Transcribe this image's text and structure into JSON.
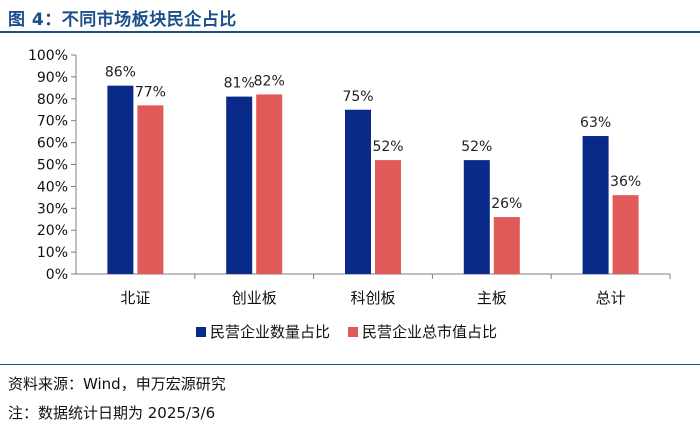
{
  "header": {
    "title": "图 4：不同市场板块民企占比"
  },
  "chart_data": {
    "type": "bar",
    "title": "",
    "xlabel": "",
    "ylabel": "",
    "ylim": [
      0,
      100
    ],
    "y_ticks": [
      "0%",
      "10%",
      "20%",
      "30%",
      "40%",
      "50%",
      "60%",
      "70%",
      "80%",
      "90%",
      "100%"
    ],
    "categories": [
      "北证",
      "创业板",
      "科创板",
      "主板",
      "总计"
    ],
    "series": [
      {
        "name": "民营企业数量占比",
        "color": "#0a2a8a",
        "values": [
          86,
          81,
          75,
          52,
          63
        ],
        "labels": [
          "86%",
          "81%",
          "75%",
          "52%",
          "63%"
        ]
      },
      {
        "name": "民营企业总市值占比",
        "color": "#e05a5a",
        "values": [
          77,
          82,
          52,
          26,
          36
        ],
        "labels": [
          "77%",
          "82%",
          "52%",
          "26%",
          "36%"
        ]
      }
    ],
    "grid": false,
    "legend_position": "bottom"
  },
  "footer": {
    "source": "资料来源：Wind，申万宏源研究",
    "note": "注：数据统计日期为 2025/3/6"
  }
}
